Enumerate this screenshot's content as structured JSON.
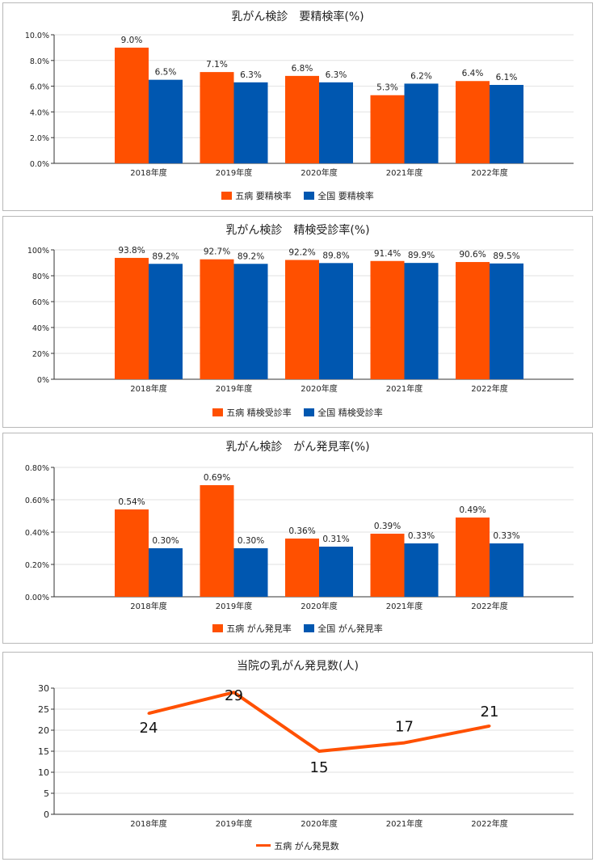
{
  "colors": {
    "gobyo": "#FF5000",
    "national": "#0057B0"
  },
  "chart_data": [
    {
      "type": "bar",
      "title": "乳がん検診　要精検率(%)",
      "categories": [
        "2018年度",
        "2019年度",
        "2020年度",
        "2021年度",
        "2022年度"
      ],
      "ylim": [
        0,
        10
      ],
      "yticks": [
        "0.0%",
        "2.0%",
        "4.0%",
        "6.0%",
        "8.0%",
        "10.0%"
      ],
      "series": [
        {
          "name": "五病 要精検率",
          "values": [
            9.0,
            7.1,
            6.8,
            5.3,
            6.4
          ],
          "labels": [
            "9.0%",
            "7.1%",
            "6.8%",
            "5.3%",
            "6.4%"
          ]
        },
        {
          "name": "全国 要精検率",
          "values": [
            6.5,
            6.3,
            6.3,
            6.2,
            6.1
          ],
          "labels": [
            "6.5%",
            "6.3%",
            "6.3%",
            "6.2%",
            "6.1%"
          ]
        }
      ],
      "legend": "bottom"
    },
    {
      "type": "bar",
      "title": "乳がん検診　精検受診率(%)",
      "categories": [
        "2018年度",
        "2019年度",
        "2020年度",
        "2021年度",
        "2022年度"
      ],
      "ylim": [
        0,
        100
      ],
      "yticks": [
        "0%",
        "20%",
        "40%",
        "60%",
        "80%",
        "100%"
      ],
      "series": [
        {
          "name": "五病 精検受診率",
          "values": [
            93.8,
            92.7,
            92.2,
            91.4,
            90.6
          ],
          "labels": [
            "93.8%",
            "92.7%",
            "92.2%",
            "91.4%",
            "90.6%"
          ]
        },
        {
          "name": "全国 精検受診率",
          "values": [
            89.2,
            89.2,
            89.8,
            89.9,
            89.5
          ],
          "labels": [
            "89.2%",
            "89.2%",
            "89.8%",
            "89.9%",
            "89.5%"
          ]
        }
      ],
      "legend": "bottom"
    },
    {
      "type": "bar",
      "title": "乳がん検診　がん発見率(%)",
      "categories": [
        "2018年度",
        "2019年度",
        "2020年度",
        "2021年度",
        "2022年度"
      ],
      "ylim": [
        0,
        0.8
      ],
      "yticks": [
        "0.00%",
        "0.20%",
        "0.40%",
        "0.60%",
        "0.80%"
      ],
      "series": [
        {
          "name": "五病 がん発見率",
          "values": [
            0.54,
            0.69,
            0.36,
            0.39,
            0.49
          ],
          "labels": [
            "0.54%",
            "0.69%",
            "0.36%",
            "0.39%",
            "0.49%"
          ]
        },
        {
          "name": "全国 がん発見率",
          "values": [
            0.3,
            0.3,
            0.31,
            0.33,
            0.33
          ],
          "labels": [
            "0.30%",
            "0.30%",
            "0.31%",
            "0.33%",
            "0.33%"
          ]
        }
      ],
      "legend": "bottom"
    },
    {
      "type": "line",
      "title": "当院の乳がん発見数(人)",
      "categories": [
        "2018年度",
        "2019年度",
        "2020年度",
        "2021年度",
        "2022年度"
      ],
      "ylim": [
        0,
        30
      ],
      "yticks": [
        "0",
        "5",
        "10",
        "15",
        "20",
        "25",
        "30"
      ],
      "series": [
        {
          "name": "五病 がん発見数",
          "values": [
            24,
            29,
            15,
            17,
            21
          ],
          "labels": [
            "24",
            "29",
            "15",
            "17",
            "21"
          ]
        }
      ],
      "legend": "bottom"
    }
  ]
}
